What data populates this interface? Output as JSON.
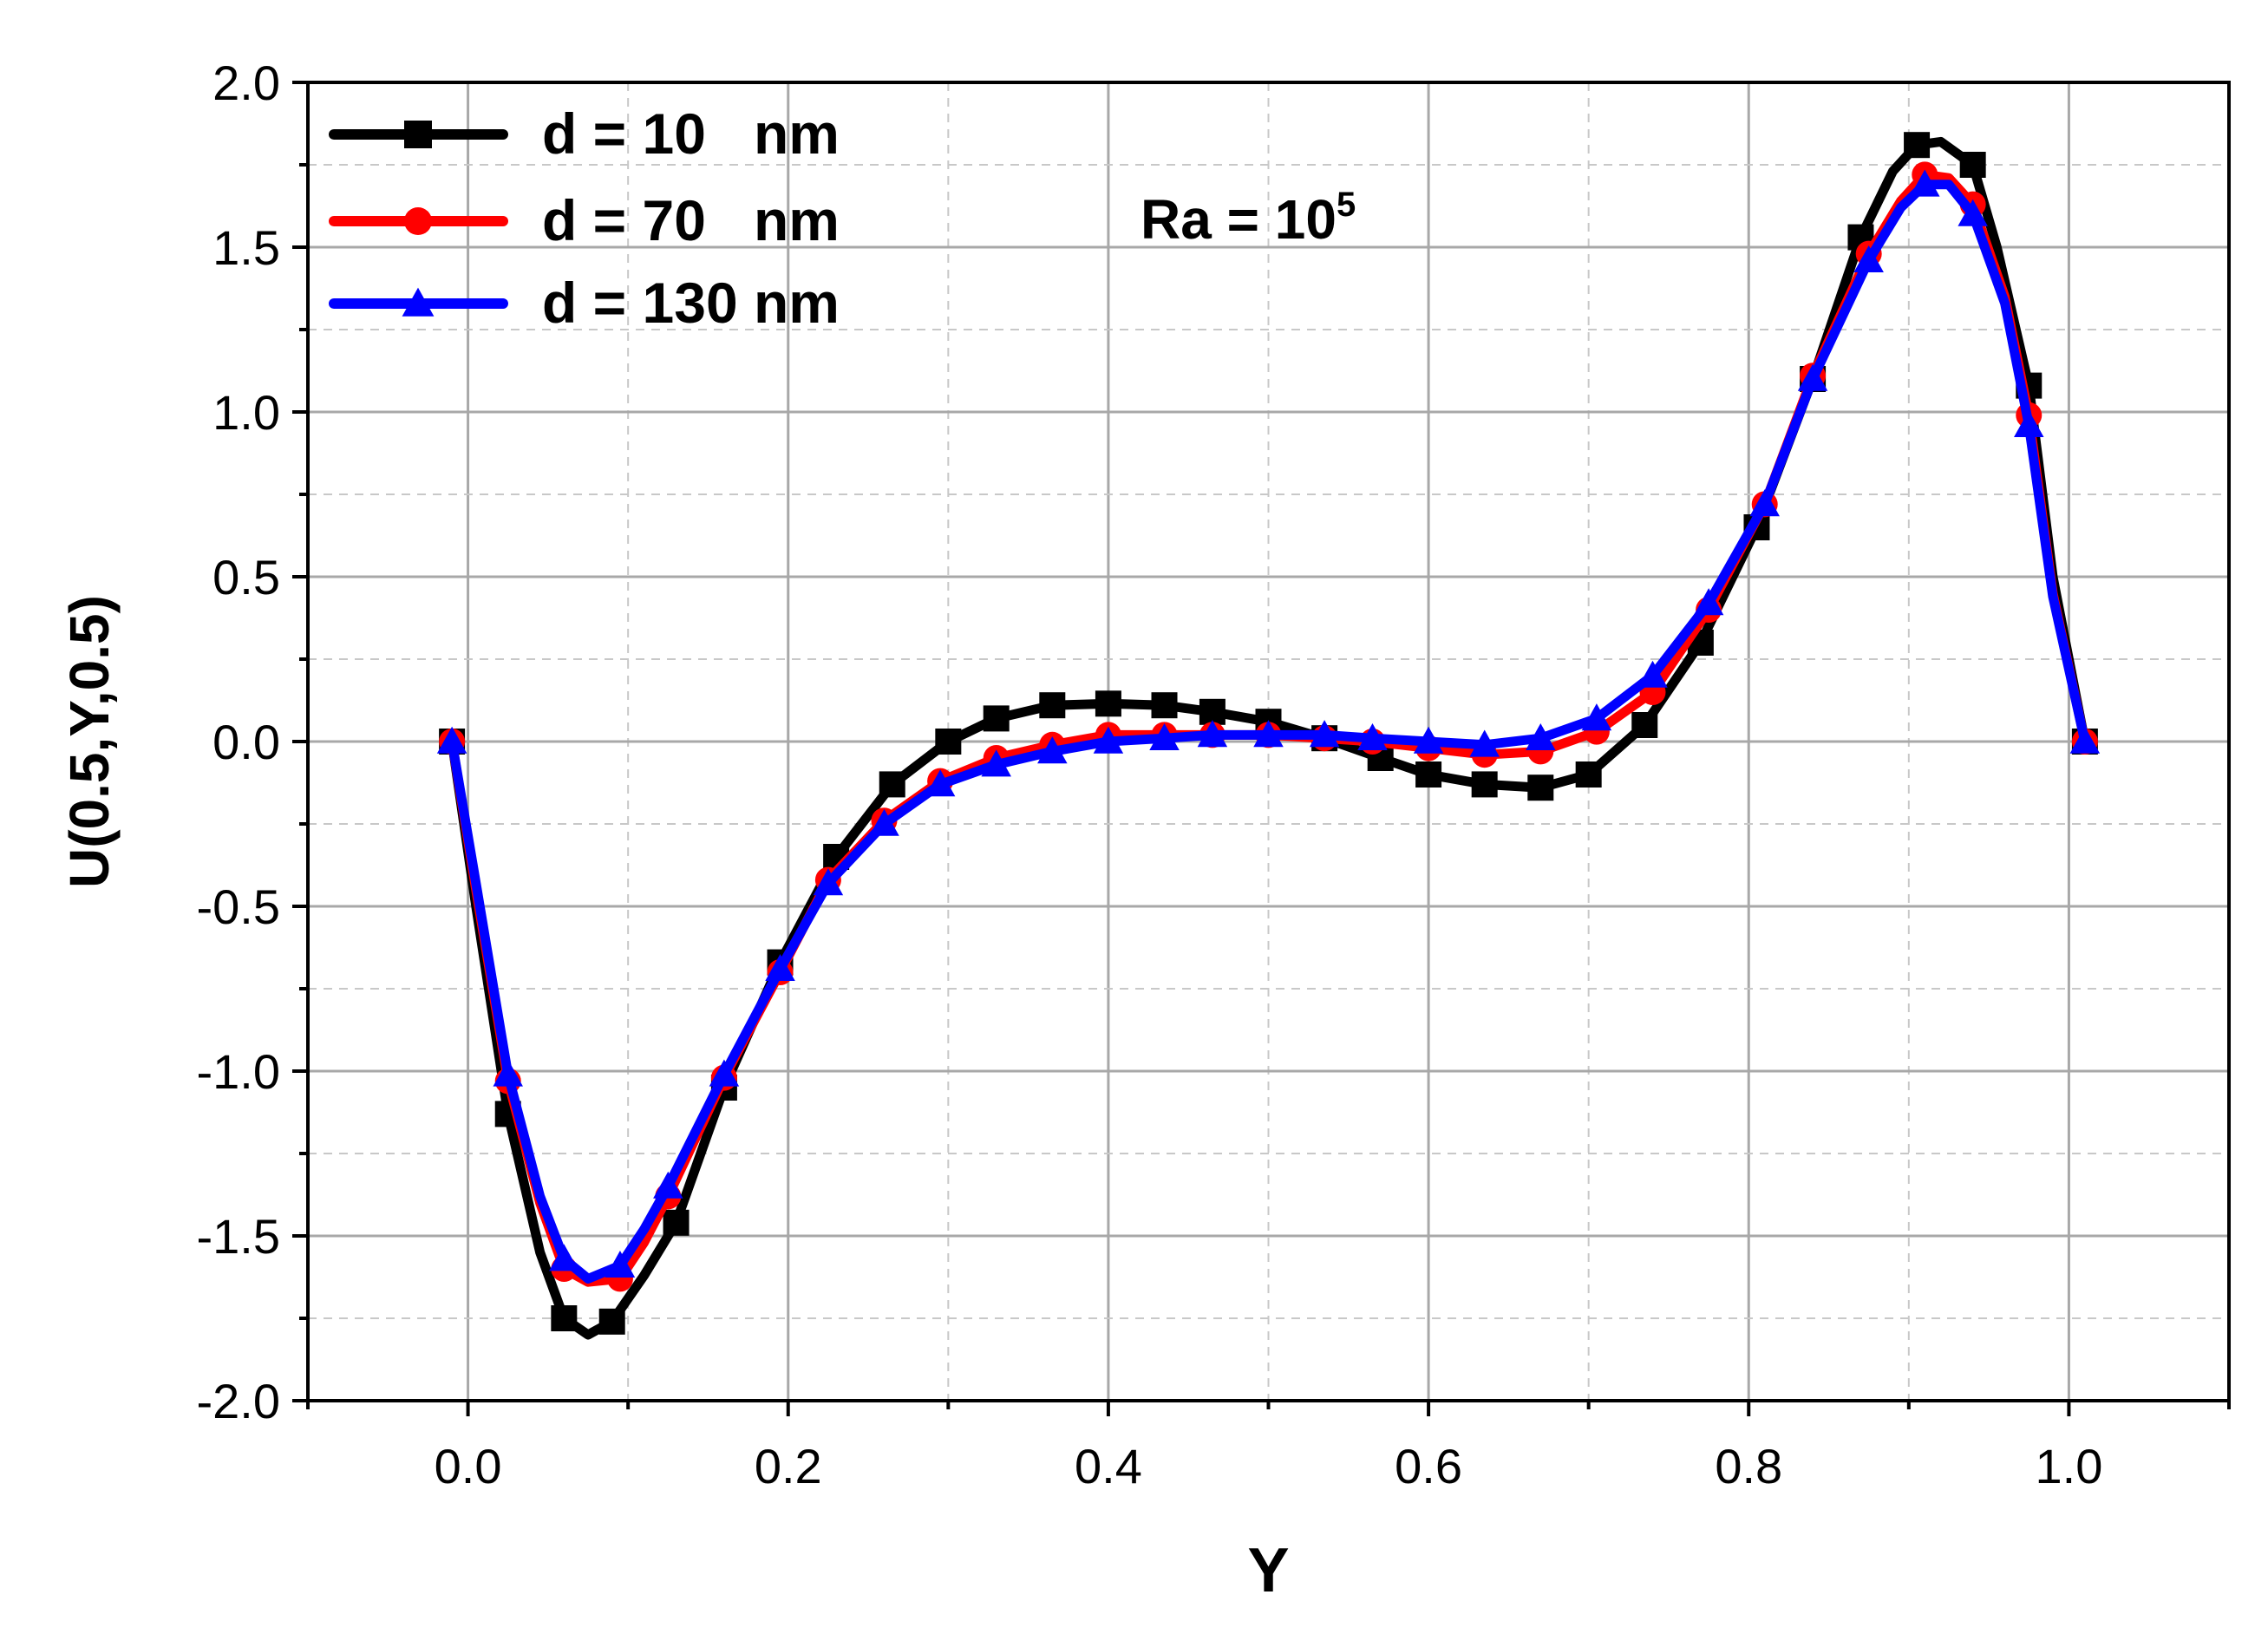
{
  "chart_data": {
    "type": "line",
    "title": "",
    "xlabel": "Y",
    "ylabel": "U(0.5,Y,0.5)",
    "xlim": [
      -0.1,
      1.1
    ],
    "ylim": [
      -2.0,
      2.0
    ],
    "x_ticks": [
      0.0,
      0.2,
      0.4,
      0.6,
      0.8,
      1.0
    ],
    "x_tick_labels": [
      "0.0",
      "0.2",
      "0.4",
      "0.6",
      "0.8",
      "1.0"
    ],
    "y_ticks": [
      -2.0,
      -1.5,
      -1.0,
      -0.5,
      0.0,
      0.5,
      1.0,
      1.5,
      2.0
    ],
    "y_tick_labels": [
      "-2.0",
      "-1.5",
      "-1.0",
      "-0.5",
      "0.0",
      "0.5",
      "1.0",
      "1.5",
      "2.0"
    ],
    "grid": true,
    "legend_position": "top-left",
    "annotation": {
      "base": "Ra = 10",
      "superscript": "5"
    },
    "series": [
      {
        "name": "d = 10   nm",
        "color": "#000000",
        "marker": "square",
        "x": [
          -0.01,
          0.005,
          0.025,
          0.045,
          0.06,
          0.075,
          0.09,
          0.11,
          0.13,
          0.16,
          0.195,
          0.23,
          0.265,
          0.3,
          0.33,
          0.365,
          0.4,
          0.435,
          0.465,
          0.5,
          0.535,
          0.57,
          0.6,
          0.635,
          0.67,
          0.7,
          0.735,
          0.77,
          0.805,
          0.84,
          0.87,
          0.89,
          0.905,
          0.92,
          0.94,
          0.955,
          0.975,
          0.99,
          1.01
        ],
        "y": [
          0.0,
          -0.5,
          -1.13,
          -1.55,
          -1.75,
          -1.8,
          -1.76,
          -1.62,
          -1.46,
          -1.05,
          -0.67,
          -0.35,
          -0.13,
          0.0,
          0.07,
          0.11,
          0.115,
          0.11,
          0.09,
          0.06,
          0.01,
          -0.05,
          -0.1,
          -0.13,
          -0.14,
          -0.1,
          0.05,
          0.3,
          0.65,
          1.1,
          1.53,
          1.73,
          1.81,
          1.82,
          1.75,
          1.5,
          1.08,
          0.5,
          0.0
        ],
        "marker_x": [
          -0.01,
          0.025,
          0.06,
          0.09,
          0.13,
          0.16,
          0.195,
          0.23,
          0.265,
          0.3,
          0.33,
          0.365,
          0.4,
          0.435,
          0.465,
          0.5,
          0.535,
          0.57,
          0.6,
          0.635,
          0.67,
          0.7,
          0.735,
          0.77,
          0.805,
          0.84,
          0.87,
          0.905,
          0.94,
          0.975,
          1.01
        ],
        "marker_y": [
          0.0,
          -1.13,
          -1.75,
          -1.76,
          -1.46,
          -1.05,
          -0.67,
          -0.35,
          -0.13,
          0.0,
          0.07,
          0.11,
          0.115,
          0.11,
          0.09,
          0.06,
          0.01,
          -0.05,
          -0.1,
          -0.13,
          -0.14,
          -0.1,
          0.05,
          0.3,
          0.65,
          1.1,
          1.53,
          1.81,
          1.75,
          1.08,
          0.0
        ]
      },
      {
        "name": "d = 70   nm",
        "color": "#ff0000",
        "marker": "circle",
        "x": [
          -0.01,
          0.005,
          0.025,
          0.045,
          0.06,
          0.075,
          0.095,
          0.11,
          0.125,
          0.16,
          0.195,
          0.225,
          0.26,
          0.295,
          0.33,
          0.365,
          0.4,
          0.435,
          0.465,
          0.5,
          0.535,
          0.565,
          0.6,
          0.635,
          0.67,
          0.705,
          0.74,
          0.775,
          0.81,
          0.84,
          0.875,
          0.895,
          0.91,
          0.925,
          0.94,
          0.96,
          0.975,
          0.99,
          1.01
        ],
        "y": [
          0.0,
          -0.45,
          -1.03,
          -1.4,
          -1.6,
          -1.64,
          -1.63,
          -1.52,
          -1.38,
          -1.02,
          -0.7,
          -0.42,
          -0.24,
          -0.12,
          -0.05,
          -0.01,
          0.02,
          0.02,
          0.02,
          0.02,
          0.01,
          0.0,
          -0.02,
          -0.04,
          -0.03,
          0.03,
          0.15,
          0.4,
          0.72,
          1.11,
          1.48,
          1.64,
          1.72,
          1.71,
          1.63,
          1.35,
          0.99,
          0.45,
          0.0
        ],
        "marker_x": [
          -0.01,
          0.025,
          0.06,
          0.095,
          0.125,
          0.16,
          0.195,
          0.225,
          0.26,
          0.295,
          0.33,
          0.365,
          0.4,
          0.435,
          0.465,
          0.5,
          0.535,
          0.565,
          0.6,
          0.635,
          0.67,
          0.705,
          0.74,
          0.775,
          0.81,
          0.84,
          0.875,
          0.91,
          0.94,
          0.975,
          1.01
        ],
        "marker_y": [
          0.0,
          -1.03,
          -1.6,
          -1.63,
          -1.38,
          -1.02,
          -0.7,
          -0.42,
          -0.24,
          -0.12,
          -0.05,
          -0.01,
          0.02,
          0.02,
          0.02,
          0.02,
          0.01,
          0.0,
          -0.02,
          -0.04,
          -0.03,
          0.03,
          0.15,
          0.4,
          0.72,
          1.11,
          1.48,
          1.72,
          1.63,
          0.99,
          0.0
        ]
      },
      {
        "name": "d = 130 nm",
        "color": "#0000ff",
        "marker": "triangle",
        "x": [
          -0.01,
          0.005,
          0.025,
          0.045,
          0.06,
          0.075,
          0.095,
          0.11,
          0.125,
          0.16,
          0.195,
          0.225,
          0.26,
          0.295,
          0.33,
          0.365,
          0.4,
          0.435,
          0.465,
          0.5,
          0.535,
          0.565,
          0.6,
          0.635,
          0.67,
          0.705,
          0.74,
          0.775,
          0.81,
          0.84,
          0.875,
          0.895,
          0.91,
          0.925,
          0.94,
          0.96,
          0.975,
          0.99,
          1.01
        ],
        "y": [
          0.0,
          -0.43,
          -1.01,
          -1.38,
          -1.57,
          -1.63,
          -1.59,
          -1.48,
          -1.35,
          -1.01,
          -0.69,
          -0.43,
          -0.25,
          -0.13,
          -0.07,
          -0.03,
          0.0,
          0.01,
          0.02,
          0.02,
          0.02,
          0.01,
          0.0,
          -0.01,
          0.01,
          0.07,
          0.2,
          0.42,
          0.72,
          1.1,
          1.46,
          1.62,
          1.69,
          1.69,
          1.6,
          1.33,
          0.96,
          0.44,
          0.0
        ],
        "marker_x": [
          -0.01,
          0.025,
          0.06,
          0.095,
          0.125,
          0.16,
          0.195,
          0.225,
          0.26,
          0.295,
          0.33,
          0.365,
          0.4,
          0.435,
          0.465,
          0.5,
          0.535,
          0.565,
          0.6,
          0.635,
          0.67,
          0.705,
          0.74,
          0.775,
          0.81,
          0.84,
          0.875,
          0.91,
          0.94,
          0.975,
          1.01
        ],
        "marker_y": [
          0.0,
          -1.01,
          -1.57,
          -1.59,
          -1.35,
          -1.01,
          -0.69,
          -0.43,
          -0.25,
          -0.13,
          -0.07,
          -0.03,
          0.0,
          0.01,
          0.02,
          0.02,
          0.02,
          0.01,
          0.0,
          -0.01,
          0.01,
          0.07,
          0.2,
          0.42,
          0.72,
          1.1,
          1.46,
          1.69,
          1.6,
          0.96,
          0.0
        ]
      }
    ]
  }
}
